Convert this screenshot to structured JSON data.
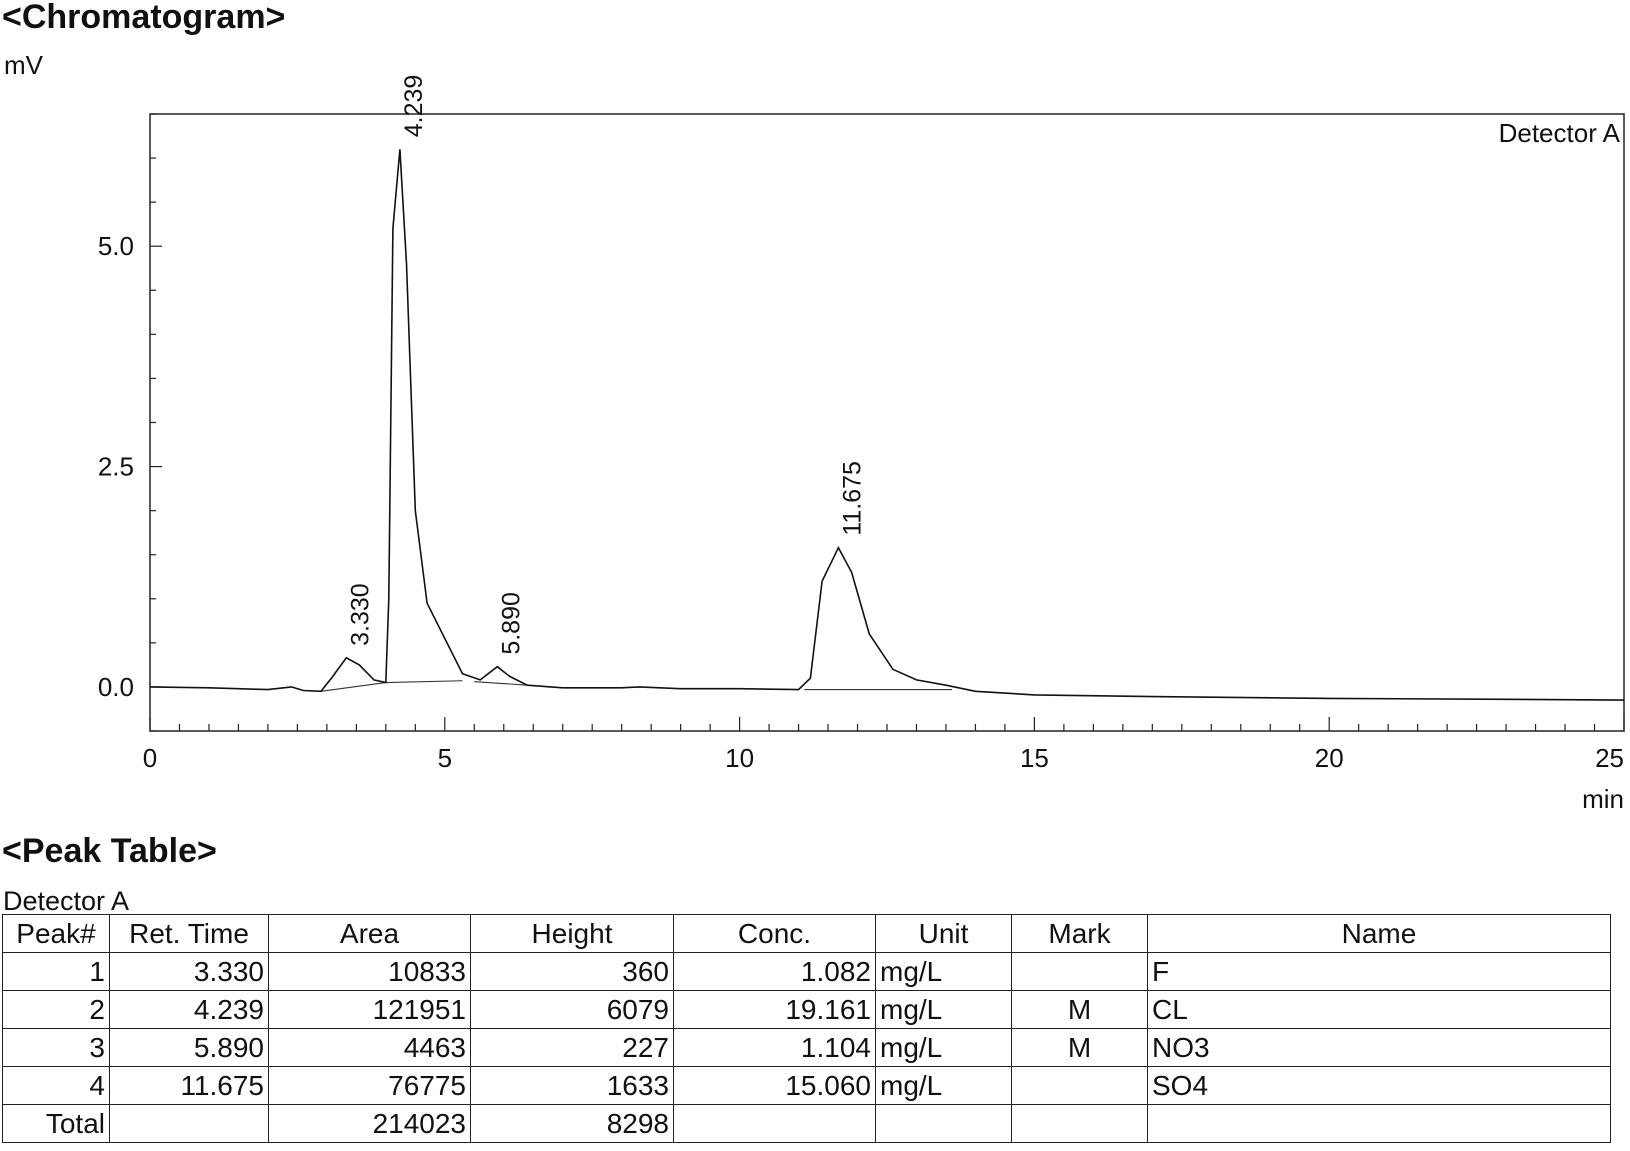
{
  "chromatogram_heading": "<Chromatogram>",
  "peak_table_heading": "<Peak Table>",
  "chart_data": {
    "type": "line",
    "ylabel": "mV",
    "xlabel": "min",
    "legend": "Detector A",
    "xlim": [
      0,
      25
    ],
    "ylim": [
      -0.5,
      6.5
    ],
    "xticks": [
      "0",
      "5",
      "10",
      "15",
      "20",
      "25"
    ],
    "yticks": [
      "0.0",
      "2.5",
      "5.0"
    ],
    "series": [
      {
        "name": "Detector A",
        "x": [
          0,
          1,
          2,
          2.4,
          2.6,
          2.9,
          3.1,
          3.33,
          3.55,
          3.8,
          4.0,
          4.05,
          4.12,
          4.239,
          4.35,
          4.5,
          4.7,
          5.0,
          5.3,
          5.6,
          5.89,
          6.1,
          6.4,
          7,
          8,
          8.3,
          9,
          10,
          11,
          11.2,
          11.4,
          11.675,
          11.9,
          12.2,
          12.6,
          13.0,
          13.5,
          14,
          15,
          17,
          20,
          23,
          25
        ],
        "y": [
          0,
          -0.01,
          -0.03,
          0.0,
          -0.04,
          -0.05,
          0.12,
          0.33,
          0.25,
          0.08,
          0.05,
          1.0,
          5.2,
          6.1,
          4.8,
          2.0,
          0.95,
          0.55,
          0.15,
          0.08,
          0.23,
          0.12,
          0.02,
          -0.01,
          -0.01,
          0.0,
          -0.02,
          -0.02,
          -0.03,
          0.1,
          1.2,
          1.58,
          1.3,
          0.6,
          0.2,
          0.08,
          0.02,
          -0.05,
          -0.09,
          -0.11,
          -0.13,
          -0.14,
          -0.15
        ]
      }
    ],
    "annotations": [
      {
        "x": 3.33,
        "y": 0.33,
        "text": "3.330"
      },
      {
        "x": 4.239,
        "y": 6.1,
        "text": "4.239"
      },
      {
        "x": 5.89,
        "y": 0.23,
        "text": "5.890"
      },
      {
        "x": 11.675,
        "y": 1.58,
        "text": "11.675"
      }
    ],
    "baselines": [
      {
        "x": [
          2.9,
          4.0
        ],
        "y": [
          -0.05,
          0.05
        ]
      },
      {
        "x": [
          4.0,
          5.3
        ],
        "y": [
          0.05,
          0.07
        ]
      },
      {
        "x": [
          5.5,
          6.4
        ],
        "y": [
          0.06,
          0.02
        ]
      },
      {
        "x": [
          11.1,
          13.6
        ],
        "y": [
          -0.03,
          -0.03
        ]
      }
    ]
  },
  "peak_table": {
    "detector_label": "Detector A",
    "headers": [
      "Peak#",
      "Ret. Time",
      "Area",
      "Height",
      "Conc.",
      "Unit",
      "Mark",
      "Name"
    ],
    "rows": [
      [
        "1",
        "3.330",
        "10833",
        "360",
        "1.082",
        "mg/L",
        "",
        "F"
      ],
      [
        "2",
        "4.239",
        "121951",
        "6079",
        "19.161",
        "mg/L",
        "M",
        "CL"
      ],
      [
        "3",
        "5.890",
        "4463",
        "227",
        "1.104",
        "mg/L",
        "M",
        "NO3"
      ],
      [
        "4",
        "11.675",
        "76775",
        "1633",
        "15.060",
        "mg/L",
        "",
        "SO4"
      ]
    ],
    "total_row": [
      "Total",
      "",
      "214023",
      "8298",
      "",
      "",
      "",
      ""
    ]
  }
}
